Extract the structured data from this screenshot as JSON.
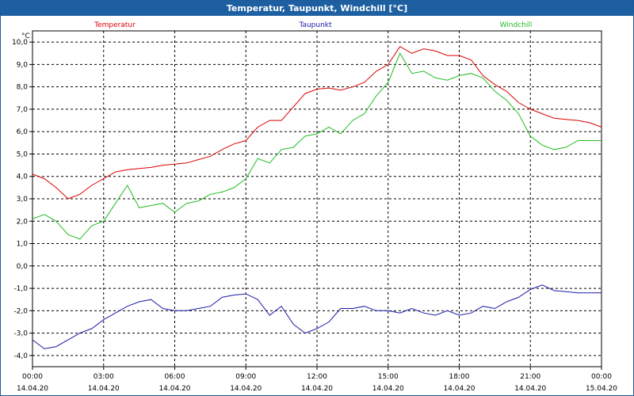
{
  "window": {
    "title": "Temperatur, Taupunkt, Windchill [°C]"
  },
  "chart_data": {
    "type": "line",
    "title": "Temperatur, Taupunkt, Windchill [°C]",
    "ylabel": "°C",
    "ylim": [
      -4.5,
      10.5
    ],
    "yticks": [
      "10,0",
      "9,0",
      "8,0",
      "7,0",
      "6,0",
      "5,0",
      "4,0",
      "3,0",
      "2,0",
      "1,0",
      "0,0",
      "-1,0",
      "-2,0",
      "-3,0",
      "-4,0"
    ],
    "x_ticks": [
      {
        "time": "00:00",
        "date": "14.04.20"
      },
      {
        "time": "03:00",
        "date": "14.04.20"
      },
      {
        "time": "06:00",
        "date": "14.04.20"
      },
      {
        "time": "09:00",
        "date": "14.04.20"
      },
      {
        "time": "12:00",
        "date": "14.04.20"
      },
      {
        "time": "15:00",
        "date": "14.04.20"
      },
      {
        "time": "18:00",
        "date": "14.04.20"
      },
      {
        "time": "21:00",
        "date": "14.04.20"
      },
      {
        "time": "00:00",
        "date": "15.04.20"
      }
    ],
    "grid": true,
    "series": [
      {
        "name": "Temperatur",
        "color": "#dd0000",
        "points": [
          [
            "00:00",
            4.1
          ],
          [
            "00:30",
            3.9
          ],
          [
            "01:00",
            3.5
          ],
          [
            "01:30",
            3.0
          ],
          [
            "02:00",
            3.2
          ],
          [
            "02:30",
            3.6
          ],
          [
            "03:00",
            3.9
          ],
          [
            "03:30",
            4.2
          ],
          [
            "04:00",
            4.3
          ],
          [
            "04:30",
            4.35
          ],
          [
            "05:00",
            4.4
          ],
          [
            "05:30",
            4.5
          ],
          [
            "06:00",
            4.55
          ],
          [
            "06:30",
            4.6
          ],
          [
            "07:00",
            4.75
          ],
          [
            "07:30",
            4.9
          ],
          [
            "08:00",
            5.2
          ],
          [
            "08:30",
            5.45
          ],
          [
            "09:00",
            5.6
          ],
          [
            "09:30",
            6.2
          ],
          [
            "10:00",
            6.5
          ],
          [
            "10:30",
            6.5
          ],
          [
            "11:00",
            7.1
          ],
          [
            "11:30",
            7.7
          ],
          [
            "12:00",
            7.9
          ],
          [
            "12:30",
            7.95
          ],
          [
            "13:00",
            7.85
          ],
          [
            "13:30",
            8.0
          ],
          [
            "14:00",
            8.2
          ],
          [
            "14:30",
            8.7
          ],
          [
            "15:00",
            9.0
          ],
          [
            "15:30",
            9.8
          ],
          [
            "16:00",
            9.5
          ],
          [
            "16:30",
            9.7
          ],
          [
            "17:00",
            9.6
          ],
          [
            "17:30",
            9.4
          ],
          [
            "18:00",
            9.4
          ],
          [
            "18:30",
            9.2
          ],
          [
            "19:00",
            8.5
          ],
          [
            "19:30",
            8.1
          ],
          [
            "20:00",
            7.8
          ],
          [
            "20:30",
            7.3
          ],
          [
            "21:00",
            7.0
          ],
          [
            "21:30",
            6.8
          ],
          [
            "22:00",
            6.6
          ],
          [
            "22:30",
            6.55
          ],
          [
            "23:00",
            6.5
          ],
          [
            "23:30",
            6.4
          ],
          [
            "24:00",
            6.2
          ]
        ]
      },
      {
        "name": "Taupunkt",
        "color": "#1a1aa6",
        "points": [
          [
            "00:00",
            -3.3
          ],
          [
            "00:30",
            -3.7
          ],
          [
            "01:00",
            -3.6
          ],
          [
            "01:30",
            -3.3
          ],
          [
            "02:00",
            -3.0
          ],
          [
            "02:30",
            -2.8
          ],
          [
            "03:00",
            -2.4
          ],
          [
            "03:30",
            -2.1
          ],
          [
            "04:00",
            -1.8
          ],
          [
            "04:30",
            -1.6
          ],
          [
            "05:00",
            -1.5
          ],
          [
            "05:30",
            -1.9
          ],
          [
            "06:00",
            -2.0
          ],
          [
            "06:30",
            -2.0
          ],
          [
            "07:00",
            -1.9
          ],
          [
            "07:30",
            -1.8
          ],
          [
            "08:00",
            -1.4
          ],
          [
            "08:30",
            -1.3
          ],
          [
            "09:00",
            -1.25
          ],
          [
            "09:30",
            -1.5
          ],
          [
            "10:00",
            -2.2
          ],
          [
            "10:30",
            -1.8
          ],
          [
            "11:00",
            -2.6
          ],
          [
            "11:30",
            -3.0
          ],
          [
            "12:00",
            -2.8
          ],
          [
            "12:30",
            -2.5
          ],
          [
            "13:00",
            -1.9
          ],
          [
            "13:30",
            -1.9
          ],
          [
            "14:00",
            -1.8
          ],
          [
            "14:30",
            -2.0
          ],
          [
            "15:00",
            -2.0
          ],
          [
            "15:30",
            -2.1
          ],
          [
            "16:00",
            -1.9
          ],
          [
            "16:30",
            -2.1
          ],
          [
            "17:00",
            -2.2
          ],
          [
            "17:30",
            -2.0
          ],
          [
            "18:00",
            -2.2
          ],
          [
            "18:30",
            -2.1
          ],
          [
            "19:00",
            -1.8
          ],
          [
            "19:30",
            -1.9
          ],
          [
            "20:00",
            -1.6
          ],
          [
            "20:30",
            -1.4
          ],
          [
            "21:00",
            -1.05
          ],
          [
            "21:30",
            -0.85
          ],
          [
            "22:00",
            -1.1
          ],
          [
            "22:30",
            -1.15
          ],
          [
            "23:00",
            -1.2
          ],
          [
            "23:30",
            -1.2
          ],
          [
            "24:00",
            -1.2
          ]
        ]
      },
      {
        "name": "Windchill",
        "color": "#22bb22",
        "points": [
          [
            "00:00",
            2.1
          ],
          [
            "00:30",
            2.3
          ],
          [
            "01:00",
            2.0
          ],
          [
            "01:30",
            1.4
          ],
          [
            "02:00",
            1.2
          ],
          [
            "02:30",
            1.8
          ],
          [
            "03:00",
            2.0
          ],
          [
            "03:30",
            2.8
          ],
          [
            "04:00",
            3.6
          ],
          [
            "04:30",
            2.6
          ],
          [
            "05:00",
            2.7
          ],
          [
            "05:30",
            2.8
          ],
          [
            "06:00",
            2.4
          ],
          [
            "06:30",
            2.8
          ],
          [
            "07:00",
            2.9
          ],
          [
            "07:30",
            3.2
          ],
          [
            "08:00",
            3.3
          ],
          [
            "08:30",
            3.5
          ],
          [
            "09:00",
            3.9
          ],
          [
            "09:30",
            4.8
          ],
          [
            "10:00",
            4.6
          ],
          [
            "10:30",
            5.2
          ],
          [
            "11:00",
            5.3
          ],
          [
            "11:30",
            5.8
          ],
          [
            "12:00",
            5.9
          ],
          [
            "12:30",
            6.2
          ],
          [
            "13:00",
            5.9
          ],
          [
            "13:30",
            6.5
          ],
          [
            "14:00",
            6.8
          ],
          [
            "14:30",
            7.6
          ],
          [
            "15:00",
            8.2
          ],
          [
            "15:30",
            9.5
          ],
          [
            "16:00",
            8.6
          ],
          [
            "16:30",
            8.7
          ],
          [
            "17:00",
            8.4
          ],
          [
            "17:30",
            8.3
          ],
          [
            "18:00",
            8.5
          ],
          [
            "18:30",
            8.6
          ],
          [
            "19:00",
            8.4
          ],
          [
            "19:30",
            7.8
          ],
          [
            "20:00",
            7.4
          ],
          [
            "20:30",
            6.8
          ],
          [
            "21:00",
            5.8
          ],
          [
            "21:30",
            5.4
          ],
          [
            "22:00",
            5.2
          ],
          [
            "22:30",
            5.3
          ],
          [
            "23:00",
            5.6
          ],
          [
            "23:30",
            5.6
          ],
          [
            "24:00",
            5.6
          ]
        ]
      }
    ]
  }
}
